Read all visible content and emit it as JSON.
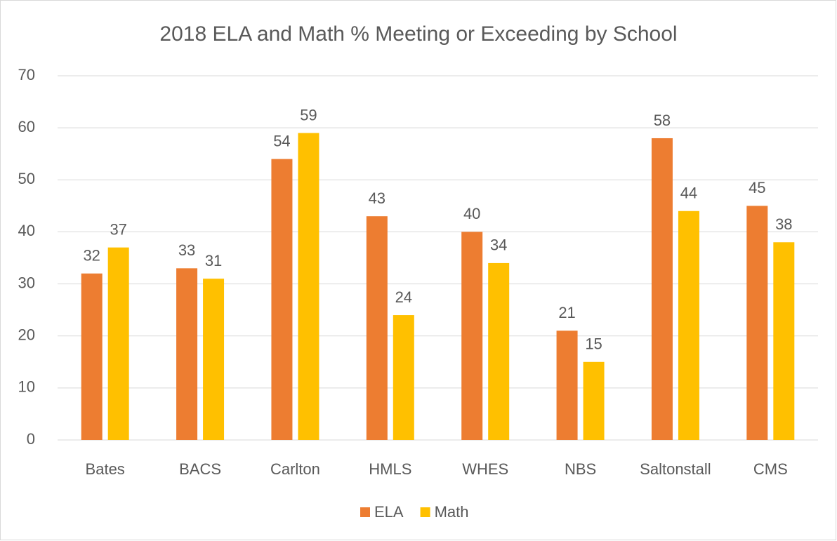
{
  "chart_data": {
    "type": "bar",
    "title": "2018 ELA and Math % Meeting or Exceeding by School",
    "categories": [
      "Bates",
      "BACS",
      "Carlton",
      "HMLS",
      "WHES",
      "NBS",
      "Saltonstall",
      "CMS"
    ],
    "series": [
      {
        "name": "ELA",
        "color": "#ed7d31",
        "values": [
          32,
          33,
          54,
          43,
          40,
          21,
          58,
          45
        ]
      },
      {
        "name": "Math",
        "color": "#ffc000",
        "values": [
          37,
          31,
          59,
          24,
          34,
          15,
          44,
          38
        ]
      }
    ],
    "ylim": [
      0,
      70
    ],
    "yticks": [
      0,
      10,
      20,
      30,
      40,
      50,
      60,
      70
    ],
    "grid": true,
    "legend": "bottom"
  }
}
